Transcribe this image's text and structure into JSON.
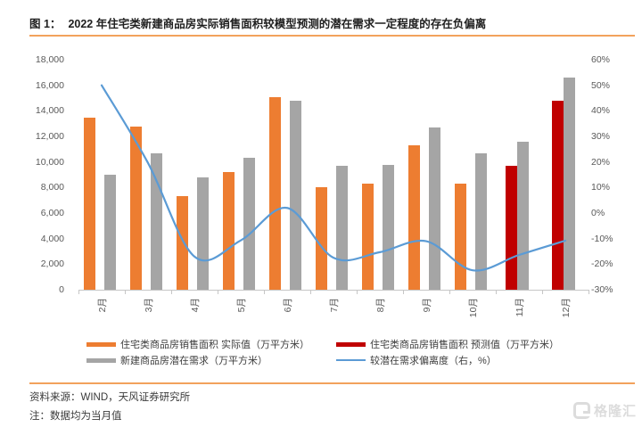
{
  "figure": {
    "label": "图 1：",
    "title": "2022 年住宅类新建商品房实际销售面积较模型预测的潜在需求一定程度的存在负偏离"
  },
  "chart_data": {
    "type": "bar+line",
    "title": "2022 年住宅类新建商品房实际销售面积较模型预测的潜在需求一定程度的存在负偏离",
    "categories": [
      "2月",
      "3月",
      "4月",
      "5月",
      "6月",
      "7月",
      "8月",
      "9月",
      "10月",
      "11月",
      "12月"
    ],
    "series": [
      {
        "name": "住宅类商品房销售面积 实际值（万平方米）",
        "type": "bar",
        "axis": "left",
        "color": "#ED7D31",
        "values": [
          13500,
          12800,
          7300,
          9200,
          15100,
          8000,
          8300,
          11300,
          8300,
          null,
          null
        ]
      },
      {
        "name": "住宅类商品房销售面积 预测值（万平方米）",
        "type": "bar",
        "axis": "left",
        "color": "#C00000",
        "values": [
          null,
          null,
          null,
          null,
          null,
          null,
          null,
          null,
          null,
          9700,
          14800
        ]
      },
      {
        "name": "新建商品房潜在需求（万平方米）",
        "type": "bar",
        "axis": "left",
        "color": "#A5A5A5",
        "values": [
          9000,
          10700,
          8800,
          10300,
          14800,
          9700,
          9800,
          12700,
          10700,
          11600,
          16600
        ]
      },
      {
        "name": "较潜在需求偏离度（右，%）",
        "type": "line",
        "axis": "right",
        "color": "#5B9BD5",
        "values": [
          50.0,
          19.6,
          -17.0,
          -10.7,
          2.0,
          -17.5,
          -15.3,
          -11.0,
          -22.4,
          -16.4,
          -10.8
        ]
      }
    ],
    "left_axis": {
      "min": 0,
      "max": 18000,
      "step": 2000,
      "tick_labels": [
        "18,000",
        "16,000",
        "14,000",
        "12,000",
        "10,000",
        "8,000",
        "6,000",
        "4,000",
        "2,000",
        "0"
      ]
    },
    "right_axis": {
      "min": -30,
      "max": 60,
      "step": 10,
      "tick_labels": [
        "60%",
        "50%",
        "40%",
        "30%",
        "20%",
        "10%",
        "0%",
        "-10%",
        "-20%",
        "-30%"
      ]
    },
    "grid": false,
    "legend_position": "bottom",
    "line_smooth": true
  },
  "footer": {
    "source": "资料来源：WIND，天风证券研究所",
    "note": "注：数据均为当月值",
    "logo_text": "格隆汇"
  },
  "colors": {
    "actual_bar": "#ED7D31",
    "predicted_bar": "#C00000",
    "potential_bar": "#A5A5A5",
    "deviation_line": "#5B9BD5",
    "accent_rule": "#f2a25c",
    "axis_text": "#595959"
  }
}
